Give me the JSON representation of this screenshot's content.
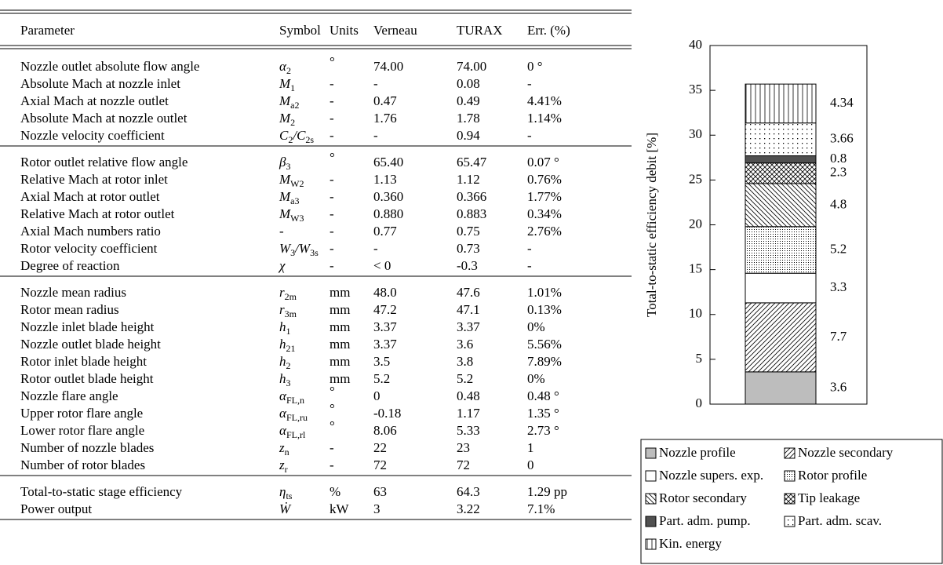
{
  "table": {
    "header": [
      "Parameter",
      "Symbol",
      "Units",
      "Verneau",
      "TURAX",
      "Err. (%)"
    ],
    "groups": [
      {
        "rows": [
          [
            "Nozzle outlet absolute flow angle",
            [
              "α",
              "2"
            ],
            "°",
            "74.00",
            "74.00",
            "0 °"
          ],
          [
            "Absolute Mach at nozzle inlet",
            [
              "M",
              "1"
            ],
            "-",
            "-",
            "0.08",
            "-"
          ],
          [
            "Axial Mach at nozzle outlet",
            [
              "M",
              "a2"
            ],
            "-",
            "0.47",
            "0.49",
            "4.41%"
          ],
          [
            "Absolute Mach at nozzle outlet",
            [
              "M",
              "2"
            ],
            "-",
            "1.76",
            "1.78",
            "1.14%"
          ],
          [
            "Nozzle velocity coefficient",
            [
              "C",
              "2",
              "/C",
              "2s"
            ],
            "-",
            "-",
            "0.94",
            "-"
          ]
        ]
      },
      {
        "rows": [
          [
            "Rotor outlet relative flow angle",
            [
              "β",
              "3"
            ],
            "°",
            "65.40",
            "65.47",
            "0.07 °"
          ],
          [
            "Relative Mach at rotor inlet",
            [
              "M",
              "W2"
            ],
            "-",
            "1.13",
            "1.12",
            "0.76%"
          ],
          [
            "Axial Mach at rotor outlet",
            [
              "M",
              "a3"
            ],
            "-",
            "0.360",
            "0.366",
            "1.77%"
          ],
          [
            "Relative Mach at rotor outlet",
            [
              "M",
              "W3"
            ],
            "-",
            "0.880",
            "0.883",
            "0.34%"
          ],
          [
            "Axial Mach numbers ratio",
            [
              "-"
            ],
            "-",
            "0.77",
            "0.75",
            "2.76%"
          ],
          [
            "Rotor velocity coefficient",
            [
              "W",
              "3",
              "/W",
              "3s"
            ],
            "-",
            "-",
            "0.73",
            "-"
          ],
          [
            "Degree of reaction",
            [
              "χ"
            ],
            "-",
            "< 0",
            "-0.3",
            "-"
          ]
        ]
      },
      {
        "rows": [
          [
            "Nozzle mean radius",
            [
              "r",
              "2m"
            ],
            "mm",
            "48.0",
            "47.6",
            "1.01%"
          ],
          [
            "Rotor mean radius",
            [
              "r",
              "3m"
            ],
            "mm",
            "47.2",
            "47.1",
            "0.13%"
          ],
          [
            "Nozzle inlet blade height",
            [
              "h",
              "1"
            ],
            "mm",
            "3.37",
            "3.37",
            "0%"
          ],
          [
            "Nozzle outlet blade height",
            [
              "h",
              "21"
            ],
            "mm",
            "3.37",
            "3.6",
            "5.56%"
          ],
          [
            "Rotor inlet blade height",
            [
              "h",
              "2"
            ],
            "mm",
            "3.5",
            "3.8",
            "7.89%"
          ],
          [
            "Rotor outlet blade height",
            [
              "h",
              "3"
            ],
            "mm",
            "5.2",
            "5.2",
            "0%"
          ],
          [
            "Nozzle flare angle",
            [
              "α",
              "FL,n"
            ],
            "°",
            "0",
            "0.48",
            "0.48 °"
          ],
          [
            "Upper rotor flare angle",
            [
              "α",
              "FL,ru"
            ],
            "°",
            "-0.18",
            "1.17",
            "1.35 °"
          ],
          [
            "Lower rotor flare angle",
            [
              "α",
              "FL,rl"
            ],
            "°",
            "8.06",
            "5.33",
            "2.73 °"
          ],
          [
            "Number of nozzle blades",
            [
              "z",
              "n"
            ],
            "-",
            "22",
            "23",
            "1"
          ],
          [
            "Number of rotor blades",
            [
              "z",
              "r"
            ],
            "-",
            "72",
            "72",
            "0"
          ]
        ]
      },
      {
        "rows": [
          [
            "Total-to-static stage efficiency",
            [
              "η",
              "ts"
            ],
            "%",
            "63",
            "64.3",
            "1.29 pp"
          ],
          [
            "Power output",
            [
              "Ẇ"
            ],
            "kW",
            "3",
            "3.22",
            "7.1%"
          ]
        ]
      }
    ]
  },
  "chart_data": {
    "type": "stacked_bar",
    "ylabel": "Total-to-static efficiency debit [%]",
    "ylim": [
      0,
      40
    ],
    "yticks": [
      0,
      5,
      10,
      15,
      20,
      25,
      30,
      35,
      40
    ],
    "series": [
      {
        "name": "Nozzle profile",
        "color": "#bdbdbd",
        "pattern": "solid",
        "values": [
          3.6
        ]
      },
      {
        "name": "Nozzle secondary",
        "color": "#000000",
        "pattern": "diag-fwd",
        "values": [
          7.7
        ]
      },
      {
        "name": "Nozzle supers. exp.",
        "color": "#ffffff",
        "pattern": "solid",
        "values": [
          3.3
        ]
      },
      {
        "name": "Rotor profile",
        "color": "#000000",
        "pattern": "dots-dense",
        "values": [
          5.2
        ]
      },
      {
        "name": "Rotor secondary",
        "color": "#000000",
        "pattern": "diag-back",
        "values": [
          4.8
        ]
      },
      {
        "name": "Tip leakage",
        "color": "#000000",
        "pattern": "crosshatch",
        "values": [
          2.3
        ]
      },
      {
        "name": "Part. adm. pump.",
        "color": "#505050",
        "pattern": "solid",
        "values": [
          0.8
        ]
      },
      {
        "name": "Part. adm. scav.",
        "color": "#000000",
        "pattern": "dots",
        "values": [
          3.66
        ]
      },
      {
        "name": "Kin. energy",
        "color": "#000000",
        "pattern": "vertical",
        "values": [
          4.34
        ]
      }
    ]
  }
}
